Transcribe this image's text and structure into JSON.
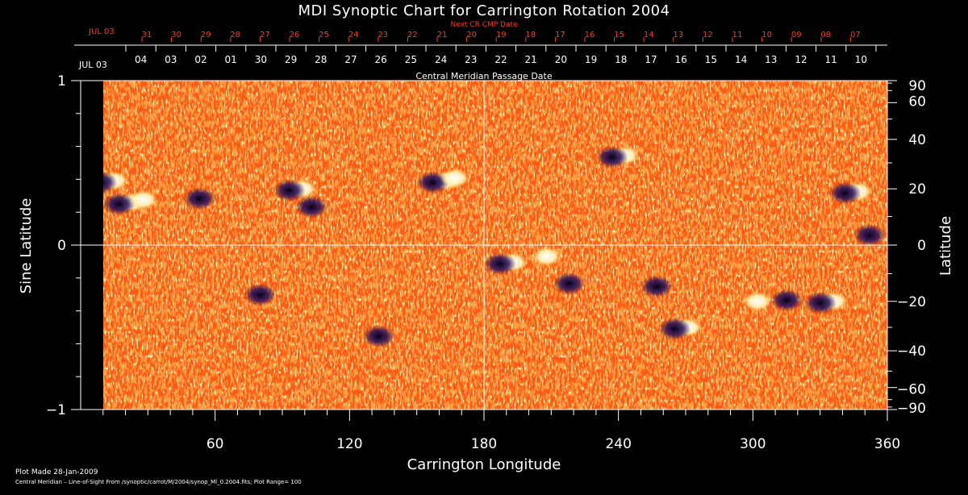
{
  "chart_data": {
    "type": "heatmap",
    "title": "MDI Synoptic Chart for Carrington Rotation 2004",
    "top_label_red": "Next CR CMP Date",
    "top_label_white": "Central Meridian Passage Date",
    "xlabel": "Carrington Longitude",
    "ylabel_left": "Sine Latitude",
    "ylabel_right": "Latitude",
    "xlim": [
      0,
      360
    ],
    "ylim": [
      -1,
      1
    ],
    "x_ticks": [
      60,
      120,
      180,
      240,
      300,
      360
    ],
    "y_ticks_left": [
      {
        "value": 1,
        "label": "1"
      },
      {
        "value": 0,
        "label": "0"
      },
      {
        "value": -1,
        "label": "−1"
      }
    ],
    "y_ticks_right": [
      {
        "lat": 90,
        "label": "90"
      },
      {
        "lat": 60,
        "label": "60"
      },
      {
        "lat": 40,
        "label": "40"
      },
      {
        "lat": 20,
        "label": "20"
      },
      {
        "lat": 0,
        "label": "0"
      },
      {
        "lat": -20,
        "label": "−20"
      },
      {
        "lat": -40,
        "label": "−40"
      },
      {
        "lat": -60,
        "label": "−60"
      },
      {
        "lat": -90,
        "label": "−90"
      }
    ],
    "cmp_dates_white": {
      "first_label": "JUL 03",
      "days": [
        "04",
        "03",
        "02",
        "01",
        "30",
        "29",
        "28",
        "27",
        "26",
        "25",
        "24",
        "23",
        "22",
        "21",
        "20",
        "19",
        "18",
        "17",
        "16",
        "15",
        "14",
        "13",
        "12",
        "11",
        "10"
      ]
    },
    "cmp_dates_red": {
      "first_label": "JUL 03",
      "days": [
        "31",
        "30",
        "29",
        "28",
        "27",
        "26",
        "25",
        "24",
        "23",
        "22",
        "21",
        "20",
        "19",
        "18",
        "17",
        "16",
        "15",
        "14",
        "13",
        "12",
        "11",
        "10",
        "09",
        "08",
        "07"
      ]
    },
    "field_range": 100,
    "active_regions": [
      {
        "lon": 12,
        "lat": 23,
        "pol": "mixed"
      },
      {
        "lon": 20,
        "lat": 15,
        "pol": "mixed"
      },
      {
        "lon": 28,
        "lat": 16,
        "pol": "positive"
      },
      {
        "lon": 53,
        "lat": 17,
        "pol": "negative"
      },
      {
        "lon": 96,
        "lat": 20,
        "pol": "mixed"
      },
      {
        "lon": 103,
        "lat": 14,
        "pol": "negative"
      },
      {
        "lon": 160,
        "lat": 23,
        "pol": "mixed"
      },
      {
        "lon": 167,
        "lat": 24,
        "pol": "positive"
      },
      {
        "lon": 240,
        "lat": 33,
        "pol": "mixed"
      },
      {
        "lon": 190,
        "lat": -6,
        "pol": "mixed"
      },
      {
        "lon": 208,
        "lat": -4,
        "pol": "positive"
      },
      {
        "lon": 218,
        "lat": -13,
        "pol": "negative"
      },
      {
        "lon": 257,
        "lat": -14,
        "pol": "negative"
      },
      {
        "lon": 302,
        "lat": -20,
        "pol": "positive"
      },
      {
        "lon": 315,
        "lat": -19,
        "pol": "negative"
      },
      {
        "lon": 333,
        "lat": -20,
        "pol": "mixed"
      },
      {
        "lon": 344,
        "lat": 19,
        "pol": "mixed"
      },
      {
        "lon": 352,
        "lat": 4,
        "pol": "negative"
      },
      {
        "lon": 80,
        "lat": -17,
        "pol": "negative"
      },
      {
        "lon": 133,
        "lat": -33,
        "pol": "negative"
      },
      {
        "lon": 268,
        "lat": -30,
        "pol": "mixed"
      }
    ]
  },
  "footer": {
    "plot_made": "Plot Made 28-Jan-2009",
    "description": "Central Meridian – Line-of-Sight From /synoptic/carrot/M/2004/synop_Ml_0.2004.fits; Plot Range=  100"
  },
  "colors": {
    "background": "#000000",
    "axis": "#ffffff",
    "red_labels": "#ff3a1a",
    "map_base": "#ff5a14"
  }
}
